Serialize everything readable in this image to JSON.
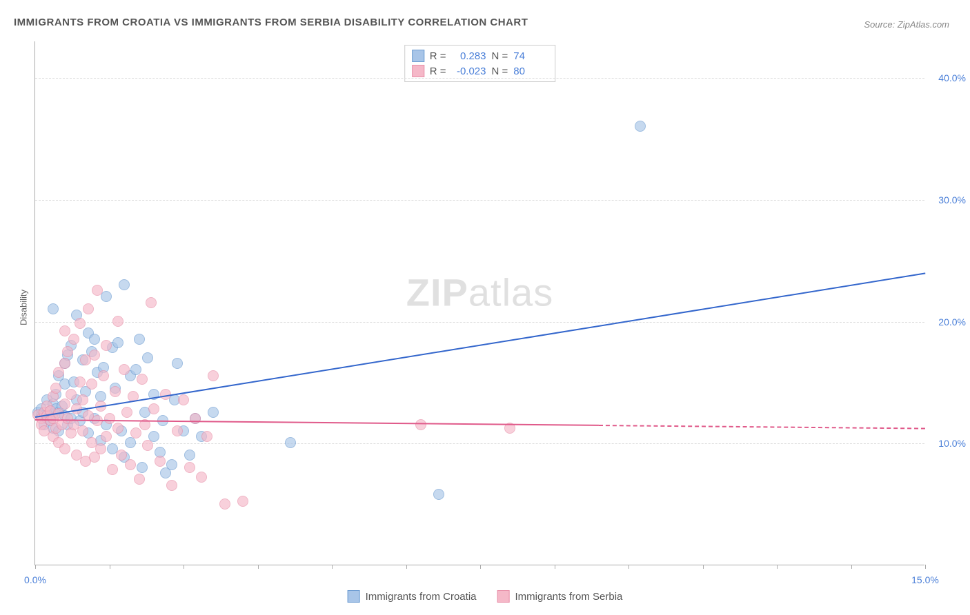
{
  "title": "IMMIGRANTS FROM CROATIA VS IMMIGRANTS FROM SERBIA DISABILITY CORRELATION CHART",
  "source": "Source: ZipAtlas.com",
  "ylabel": "Disability",
  "watermark_bold": "ZIP",
  "watermark_light": "atlas",
  "chart": {
    "type": "scatter",
    "xlim": [
      0,
      15
    ],
    "ylim": [
      0,
      43
    ],
    "x_ticks": [
      0,
      5,
      10,
      15
    ],
    "x_tick_labels": [
      "0.0%",
      "",
      "",
      "15.0%"
    ],
    "x_minor_ticks": [
      1.25,
      2.5,
      3.75,
      6.25,
      7.5,
      8.75,
      11.25,
      12.5,
      13.75
    ],
    "y_ticks": [
      10,
      20,
      30,
      40
    ],
    "y_tick_labels": [
      "10.0%",
      "20.0%",
      "30.0%",
      "40.0%"
    ],
    "background_color": "#ffffff",
    "grid_color": "#dddddd",
    "axis_color": "#aaaaaa",
    "tick_label_color": "#4a7fd8",
    "title_color": "#555555",
    "title_fontsize": 15,
    "label_fontsize": 13
  },
  "series": [
    {
      "name": "Immigrants from Croatia",
      "fill_color": "#a8c5e8",
      "stroke_color": "#6b9bd1",
      "fill_opacity": 0.65,
      "marker_size": 16,
      "R": "0.283",
      "N": "74",
      "trend": {
        "x1": 0,
        "y1": 12.2,
        "x2": 15,
        "y2": 24,
        "solid_until_x": 15,
        "color": "#3366cc",
        "width": 2
      },
      "points": [
        [
          0.05,
          12.5
        ],
        [
          0.1,
          12.3
        ],
        [
          0.1,
          12.8
        ],
        [
          0.15,
          12.2
        ],
        [
          0.15,
          11.5
        ],
        [
          0.2,
          13.5
        ],
        [
          0.2,
          12.0
        ],
        [
          0.25,
          12.6
        ],
        [
          0.25,
          11.8
        ],
        [
          0.3,
          12.4
        ],
        [
          0.3,
          13.2
        ],
        [
          0.3,
          11.2
        ],
        [
          0.35,
          12.8
        ],
        [
          0.35,
          14.0
        ],
        [
          0.4,
          12.5
        ],
        [
          0.4,
          11.0
        ],
        [
          0.4,
          15.5
        ],
        [
          0.45,
          13.0
        ],
        [
          0.5,
          12.2
        ],
        [
          0.5,
          14.8
        ],
        [
          0.5,
          16.5
        ],
        [
          0.55,
          11.5
        ],
        [
          0.55,
          17.2
        ],
        [
          0.6,
          18.0
        ],
        [
          0.6,
          12.0
        ],
        [
          0.65,
          15.0
        ],
        [
          0.7,
          20.5
        ],
        [
          0.7,
          13.5
        ],
        [
          0.75,
          11.8
        ],
        [
          0.8,
          16.8
        ],
        [
          0.8,
          12.5
        ],
        [
          0.85,
          14.2
        ],
        [
          0.9,
          19.0
        ],
        [
          0.9,
          10.8
        ],
        [
          0.95,
          17.5
        ],
        [
          1.0,
          18.5
        ],
        [
          1.0,
          12.0
        ],
        [
          1.05,
          15.8
        ],
        [
          1.1,
          10.2
        ],
        [
          1.1,
          13.8
        ],
        [
          1.15,
          16.2
        ],
        [
          1.2,
          11.5
        ],
        [
          1.2,
          22.0
        ],
        [
          1.3,
          17.8
        ],
        [
          1.3,
          9.5
        ],
        [
          1.35,
          14.5
        ],
        [
          1.4,
          18.2
        ],
        [
          1.45,
          11.0
        ],
        [
          1.5,
          23.0
        ],
        [
          1.5,
          8.8
        ],
        [
          1.6,
          15.5
        ],
        [
          1.6,
          10.0
        ],
        [
          1.7,
          16.0
        ],
        [
          1.75,
          18.5
        ],
        [
          1.8,
          8.0
        ],
        [
          1.85,
          12.5
        ],
        [
          1.9,
          17.0
        ],
        [
          2.0,
          10.5
        ],
        [
          2.0,
          14.0
        ],
        [
          2.1,
          9.2
        ],
        [
          2.15,
          11.8
        ],
        [
          2.2,
          7.5
        ],
        [
          2.3,
          8.2
        ],
        [
          2.35,
          13.5
        ],
        [
          2.4,
          16.5
        ],
        [
          2.5,
          11.0
        ],
        [
          2.6,
          9.0
        ],
        [
          2.7,
          12.0
        ],
        [
          2.8,
          10.5
        ],
        [
          3.0,
          12.5
        ],
        [
          4.3,
          10.0
        ],
        [
          6.8,
          5.8
        ],
        [
          10.2,
          36.0
        ],
        [
          0.3,
          21.0
        ]
      ]
    },
    {
      "name": "Immigrants from Serbia",
      "fill_color": "#f5b8c8",
      "stroke_color": "#e88fa8",
      "fill_opacity": 0.65,
      "marker_size": 16,
      "R": "-0.023",
      "N": "80",
      "trend": {
        "x1": 0,
        "y1": 12.0,
        "x2": 15,
        "y2": 11.3,
        "solid_until_x": 9.5,
        "color": "#e05a8a",
        "width": 2
      },
      "points": [
        [
          0.05,
          12.3
        ],
        [
          0.1,
          12.0
        ],
        [
          0.1,
          11.5
        ],
        [
          0.15,
          12.5
        ],
        [
          0.15,
          11.0
        ],
        [
          0.2,
          12.2
        ],
        [
          0.2,
          13.0
        ],
        [
          0.25,
          11.8
        ],
        [
          0.25,
          12.6
        ],
        [
          0.3,
          12.0
        ],
        [
          0.3,
          10.5
        ],
        [
          0.3,
          13.8
        ],
        [
          0.35,
          11.2
        ],
        [
          0.35,
          14.5
        ],
        [
          0.4,
          12.4
        ],
        [
          0.4,
          10.0
        ],
        [
          0.4,
          15.8
        ],
        [
          0.45,
          11.5
        ],
        [
          0.5,
          13.2
        ],
        [
          0.5,
          9.5
        ],
        [
          0.5,
          16.5
        ],
        [
          0.55,
          12.0
        ],
        [
          0.55,
          17.5
        ],
        [
          0.6,
          10.8
        ],
        [
          0.6,
          14.0
        ],
        [
          0.65,
          11.5
        ],
        [
          0.65,
          18.5
        ],
        [
          0.7,
          12.8
        ],
        [
          0.7,
          9.0
        ],
        [
          0.75,
          15.0
        ],
        [
          0.75,
          19.8
        ],
        [
          0.8,
          11.0
        ],
        [
          0.8,
          13.5
        ],
        [
          0.85,
          16.8
        ],
        [
          0.85,
          8.5
        ],
        [
          0.9,
          12.2
        ],
        [
          0.9,
          21.0
        ],
        [
          0.95,
          10.0
        ],
        [
          0.95,
          14.8
        ],
        [
          1.0,
          17.2
        ],
        [
          1.0,
          8.8
        ],
        [
          1.05,
          11.8
        ],
        [
          1.05,
          22.5
        ],
        [
          1.1,
          13.0
        ],
        [
          1.1,
          9.5
        ],
        [
          1.15,
          15.5
        ],
        [
          1.2,
          10.5
        ],
        [
          1.2,
          18.0
        ],
        [
          1.25,
          12.0
        ],
        [
          1.3,
          7.8
        ],
        [
          1.35,
          14.2
        ],
        [
          1.4,
          11.2
        ],
        [
          1.4,
          20.0
        ],
        [
          1.45,
          9.0
        ],
        [
          1.5,
          16.0
        ],
        [
          1.55,
          12.5
        ],
        [
          1.6,
          8.2
        ],
        [
          1.65,
          13.8
        ],
        [
          1.7,
          10.8
        ],
        [
          1.75,
          7.0
        ],
        [
          1.8,
          15.2
        ],
        [
          1.85,
          11.5
        ],
        [
          1.9,
          9.8
        ],
        [
          1.95,
          21.5
        ],
        [
          2.0,
          12.8
        ],
        [
          2.1,
          8.5
        ],
        [
          2.2,
          14.0
        ],
        [
          2.3,
          6.5
        ],
        [
          2.4,
          11.0
        ],
        [
          2.5,
          13.5
        ],
        [
          2.6,
          8.0
        ],
        [
          2.7,
          12.0
        ],
        [
          2.8,
          7.2
        ],
        [
          2.9,
          10.5
        ],
        [
          3.0,
          15.5
        ],
        [
          3.2,
          5.0
        ],
        [
          3.5,
          5.2
        ],
        [
          6.5,
          11.5
        ],
        [
          8.0,
          11.2
        ],
        [
          0.5,
          19.2
        ]
      ]
    }
  ],
  "stats_labels": {
    "R": "R =",
    "N": "N ="
  },
  "legend_items": [
    {
      "label": "Immigrants from Croatia",
      "fill": "#a8c5e8",
      "stroke": "#6b9bd1"
    },
    {
      "label": "Immigrants from Serbia",
      "fill": "#f5b8c8",
      "stroke": "#e88fa8"
    }
  ]
}
